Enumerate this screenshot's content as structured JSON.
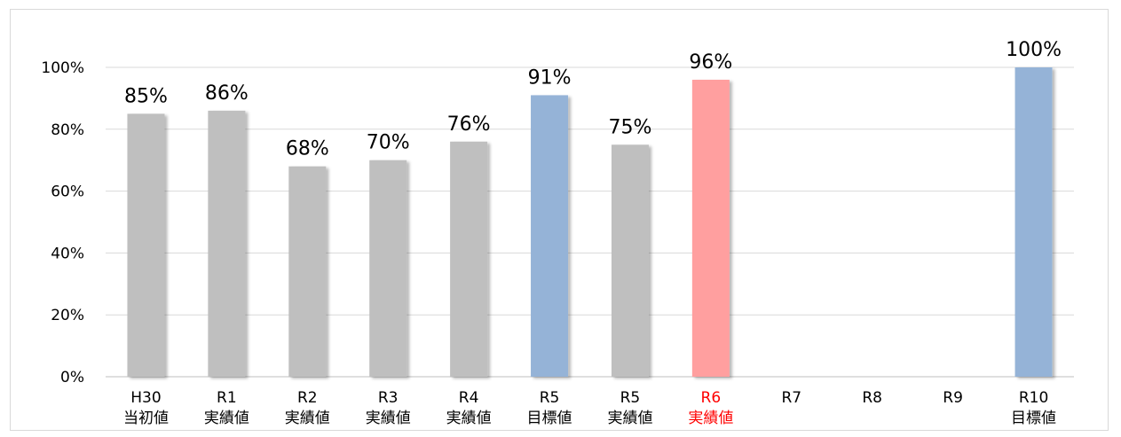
{
  "chart_data": {
    "type": "bar",
    "categories": [
      {
        "top": "H30",
        "bottom": "当初値"
      },
      {
        "top": "R1",
        "bottom": "実績値"
      },
      {
        "top": "R2",
        "bottom": "実績値"
      },
      {
        "top": "R3",
        "bottom": "実績値"
      },
      {
        "top": "R4",
        "bottom": "実績値"
      },
      {
        "top": "R5",
        "bottom": "目標値"
      },
      {
        "top": "R5",
        "bottom": "実績値"
      },
      {
        "top": "R6",
        "bottom": "実績値"
      },
      {
        "top": "R7",
        "bottom": ""
      },
      {
        "top": "R8",
        "bottom": ""
      },
      {
        "top": "R9",
        "bottom": ""
      },
      {
        "top": "R10",
        "bottom": "目標値"
      }
    ],
    "values": [
      85,
      86,
      68,
      70,
      76,
      91,
      75,
      96,
      null,
      null,
      null,
      100
    ],
    "value_labels": [
      "85%",
      "86%",
      "68%",
      "70%",
      "76%",
      "91%",
      "75%",
      "96%",
      "",
      "",
      "",
      "100%"
    ],
    "bar_colors": [
      "#bfbfbf",
      "#bfbfbf",
      "#bfbfbf",
      "#bfbfbf",
      "#bfbfbf",
      "#95b3d7",
      "#bfbfbf",
      "#ff9f9f",
      "",
      "",
      "",
      "#95b3d7"
    ],
    "label_colors": [
      "#000000",
      "#000000",
      "#000000",
      "#000000",
      "#000000",
      "#000000",
      "#000000",
      "#ff0000",
      "#000000",
      "#000000",
      "#000000",
      "#000000"
    ],
    "yticks": [
      "0%",
      "20%",
      "40%",
      "60%",
      "80%",
      "100%"
    ],
    "ylim": [
      0,
      100
    ],
    "grid": true,
    "title": "",
    "xlabel": "",
    "ylabel": ""
  }
}
